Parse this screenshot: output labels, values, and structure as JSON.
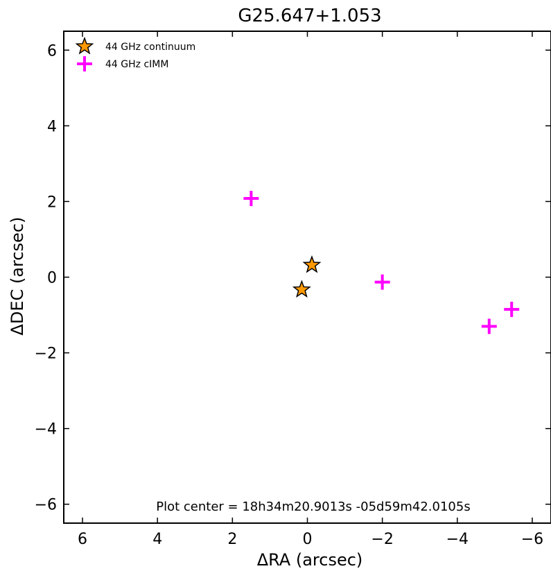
{
  "chart_data": {
    "type": "scatter",
    "title": "G25.647+1.053",
    "xlabel": "ΔRA (arcsec)",
    "ylabel": "ΔDEC (arcsec)",
    "xlim": [
      6.5,
      -6.5
    ],
    "ylim": [
      -6.5,
      6.5
    ],
    "x_reversed": true,
    "xticks": [
      6,
      4,
      2,
      0,
      -2,
      -4,
      -6
    ],
    "yticks": [
      6,
      4,
      2,
      0,
      -2,
      -4,
      -6
    ],
    "xtick_labels": [
      "6",
      "4",
      "2",
      "0",
      "−2",
      "−4",
      "−6"
    ],
    "ytick_labels": [
      "6",
      "4",
      "2",
      "0",
      "−2",
      "−4",
      "−6"
    ],
    "grid": false,
    "legend_position": "top-left",
    "annotation": "Plot center = 18h34m20.9013s -05d59m42.0105s",
    "series": [
      {
        "name": "44 GHz continuum",
        "marker": "star",
        "color": "#ff9900",
        "edge_color": "#000000",
        "points": [
          {
            "x": -0.12,
            "y": 0.32
          },
          {
            "x": 0.15,
            "y": -0.33
          }
        ]
      },
      {
        "name": "44 GHz cIMM",
        "marker": "plus",
        "color": "#ff00ff",
        "points": [
          {
            "x": 1.5,
            "y": 2.08
          },
          {
            "x": -2.0,
            "y": -0.13
          },
          {
            "x": -4.85,
            "y": -1.3
          },
          {
            "x": -5.45,
            "y": -0.85
          }
        ]
      }
    ]
  }
}
